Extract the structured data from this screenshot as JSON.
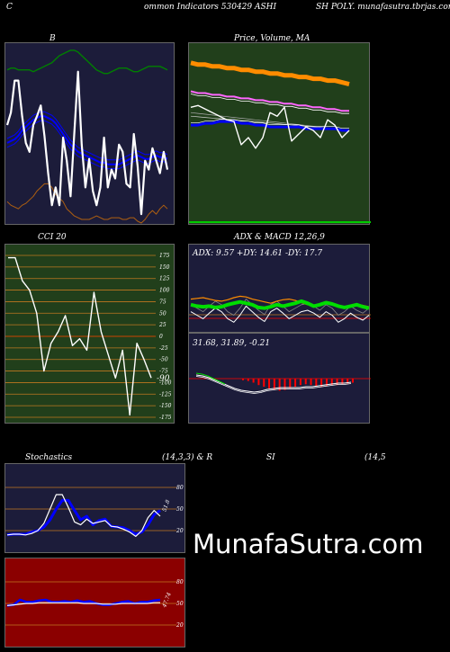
{
  "header": {
    "left": "C",
    "middle": "ommon  Indicators 530429 ASHI",
    "right": "SH POLY. munafasutra.tbrjas.com"
  },
  "watermark": "MunafaSutra.com",
  "colors": {
    "bg": "#000000",
    "navy": "#1c1c3a",
    "green": "#213f1b",
    "darkred": "#8b0000",
    "white": "#ffffff",
    "blue": "#0000ff",
    "orange": "#ff8c00",
    "magenta": "#ff66ff",
    "lime": "#00dd00",
    "red": "#ff0000",
    "tan": "#b06010"
  },
  "chart_data": [
    {
      "id": "bollinger",
      "type": "line",
      "title": "B",
      "series": [
        {
          "color": "#ffffff",
          "values": [
            55,
            62,
            80,
            80,
            60,
            45,
            40,
            55,
            60,
            66,
            49,
            28,
            10,
            20,
            10,
            48,
            35,
            15,
            50,
            85,
            44,
            20,
            36,
            18,
            10,
            20,
            48,
            20,
            30,
            25,
            44,
            40,
            22,
            20,
            50,
            32,
            5,
            35,
            30,
            42,
            35,
            28,
            40,
            30
          ]
        },
        {
          "color": "#0000ff",
          "values": [
            45,
            46,
            47,
            49,
            52,
            54,
            56,
            58,
            59,
            60,
            60,
            59,
            58,
            56,
            53,
            50,
            47,
            44,
            42,
            40,
            39,
            38,
            37,
            36,
            35,
            34,
            34,
            33,
            33,
            33,
            33,
            34,
            35,
            36,
            37,
            38,
            37,
            36,
            36,
            37,
            38,
            37,
            37,
            36
          ]
        },
        {
          "color": "#008000",
          "values": [
            86,
            87,
            87,
            86,
            86,
            86,
            86,
            85,
            86,
            87,
            88,
            89,
            90,
            92,
            94,
            95,
            96,
            97,
            97,
            96,
            94,
            92,
            90,
            88,
            86,
            85,
            84,
            84,
            85,
            86,
            87,
            87,
            87,
            86,
            85,
            85,
            86,
            87,
            88,
            88,
            88,
            88,
            87,
            86
          ]
        },
        {
          "color": "#b06010",
          "values": [
            12,
            10,
            9,
            8,
            10,
            11,
            13,
            15,
            18,
            20,
            22,
            22,
            20,
            16,
            14,
            12,
            8,
            6,
            4,
            3,
            2,
            2,
            2,
            3,
            4,
            3,
            2,
            2,
            3,
            3,
            3,
            2,
            2,
            3,
            3,
            1,
            0,
            2,
            5,
            7,
            5,
            8,
            10,
            8
          ]
        }
      ]
    },
    {
      "id": "price-ma",
      "type": "line",
      "title": "Price,  Volume,  MA",
      "series": [
        {
          "color": "#ff8c00",
          "values": [
            90,
            89,
            89,
            88,
            88,
            87,
            87,
            86,
            86,
            85,
            85,
            84,
            84,
            83,
            83,
            82,
            82,
            81,
            81,
            80,
            80,
            79,
            78
          ]
        },
        {
          "color": "#ff66ff",
          "values": [
            74,
            73,
            73,
            72,
            72,
            71,
            71,
            70,
            70,
            69,
            69,
            68,
            68,
            67,
            67,
            66,
            66,
            65,
            65,
            64,
            64,
            63,
            63
          ]
        },
        {
          "color": "#0000ff",
          "values": [
            55,
            55,
            56,
            56,
            57,
            57,
            57,
            56,
            56,
            55,
            55,
            54,
            54,
            54,
            54,
            54,
            53,
            53,
            53,
            53,
            53,
            52,
            52
          ]
        },
        {
          "color": "#ffffff",
          "values": [
            65,
            66,
            64,
            62,
            60,
            58,
            57,
            44,
            48,
            42,
            48,
            62,
            60,
            65,
            46,
            50,
            54,
            52,
            48,
            58,
            55,
            48,
            52
          ]
        }
      ]
    },
    {
      "id": "cci",
      "type": "line",
      "title": "CCI 20",
      "ylim": [
        -175,
        175
      ],
      "yticks": [
        "175",
        "150",
        "125",
        "100",
        "75",
        "50",
        "25",
        "0",
        "-25",
        "-50",
        "-75",
        "-100",
        "-125",
        "-150",
        "-175"
      ],
      "last_value": "-90",
      "series": [
        {
          "color": "#ffffff",
          "values": [
            170,
            170,
            120,
            100,
            50,
            -75,
            -15,
            10,
            45,
            -20,
            -5,
            -30,
            95,
            10,
            -40,
            -90,
            -30,
            -170,
            -15,
            -50,
            -90
          ]
        }
      ]
    },
    {
      "id": "adx-macd",
      "type": "line",
      "title": "ADX  & MACD 12,26,9",
      "adx_label": "ADX: 9.57 +DY: 14.61 -DY: 17.7",
      "macd_label": "31.68,  31.89,  -0.21",
      "series": [
        {
          "color": "#00dd00",
          "values": [
            40,
            38,
            37,
            38,
            36,
            37,
            40,
            42,
            44,
            42,
            40,
            36,
            35,
            37,
            40,
            38,
            40,
            42,
            45,
            42,
            38,
            40,
            43,
            41,
            38,
            36,
            38,
            40,
            37,
            35
          ]
        },
        {
          "color": "#ff8c00",
          "values": [
            48,
            49,
            50,
            48,
            46,
            45,
            47,
            50,
            52,
            51,
            48,
            46,
            44,
            42,
            45,
            47,
            48,
            46,
            43,
            40,
            39,
            41,
            44,
            42,
            39,
            37,
            38,
            41,
            39,
            37
          ]
        },
        {
          "color": "#ffffff",
          "values": [
            30,
            25,
            20,
            28,
            35,
            30,
            20,
            15,
            25,
            38,
            30,
            22,
            16,
            30,
            35,
            28,
            20,
            25,
            30,
            32,
            28,
            22,
            30,
            25,
            15,
            20,
            28,
            22,
            18,
            25
          ]
        },
        {
          "color": "#ff0000",
          "values": [
            -2,
            -3,
            -5,
            -8,
            -10,
            -12,
            -14,
            -15,
            -14,
            -12,
            -10,
            -8,
            -7,
            -8,
            -9,
            -10,
            -9,
            -8,
            -8,
            -7,
            -6,
            -5
          ]
        }
      ]
    },
    {
      "id": "stochastics",
      "type": "line",
      "title": "Stochastics",
      "params": "(14,3,3) & R",
      "yticks": [
        "80",
        "50",
        "20"
      ],
      "last_value": "51.8",
      "series": [
        {
          "color": "#0000ff",
          "values": [
            14,
            15,
            15,
            15,
            18,
            20,
            25,
            35,
            50,
            62,
            62,
            48,
            35,
            40,
            28,
            34,
            36,
            26,
            25,
            24,
            20,
            15,
            18,
            28,
            42,
            48
          ]
        },
        {
          "color": "#ffffff",
          "values": [
            14,
            15,
            15,
            14,
            16,
            20,
            30,
            50,
            70,
            70,
            52,
            32,
            28,
            36,
            30,
            32,
            34,
            26,
            25,
            22,
            18,
            12,
            20,
            38,
            48,
            40
          ]
        }
      ]
    },
    {
      "id": "rsi",
      "type": "line",
      "title": "SI",
      "params": "(14,5",
      "yticks": [
        "80",
        "50",
        "20"
      ],
      "last_value": "47.74",
      "series": [
        {
          "color": "#0000ff",
          "values": [
            47,
            48,
            55,
            52,
            52,
            54,
            55,
            52,
            52,
            53,
            52,
            54,
            52,
            53,
            50,
            48,
            48,
            50,
            52,
            53,
            50,
            52,
            52,
            54,
            55
          ]
        },
        {
          "color": "#ffffff",
          "values": [
            47,
            48,
            49,
            50,
            50,
            51,
            51,
            51,
            51,
            51,
            51,
            51,
            50,
            50,
            50,
            49,
            49,
            49,
            50,
            50,
            50,
            50,
            50,
            51,
            51
          ]
        }
      ]
    }
  ]
}
